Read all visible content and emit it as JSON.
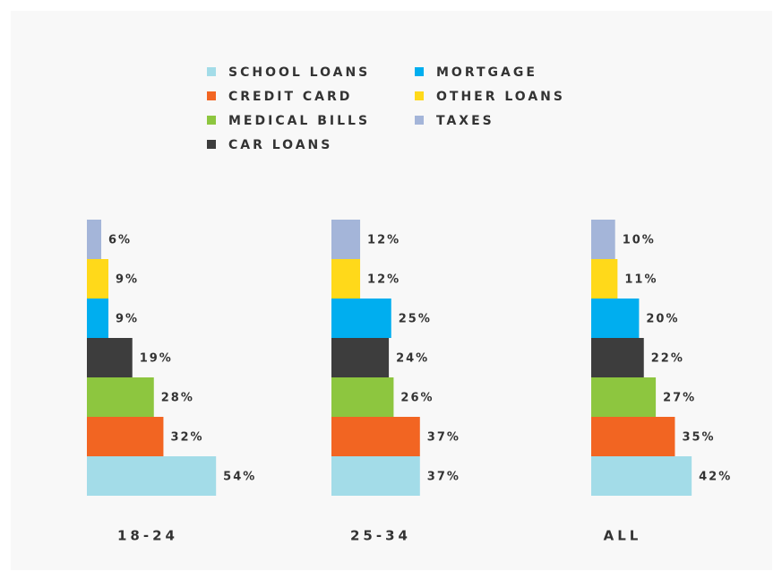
{
  "chart_data": {
    "type": "bar",
    "categories": [
      "18-24",
      "25-34",
      "ALL"
    ],
    "series": [
      {
        "name": "SCHOOL LOANS",
        "color": "#a3dce8",
        "values": [
          54,
          37,
          42
        ],
        "value_labels": [
          "54%",
          "37%",
          "42%"
        ]
      },
      {
        "name": "CREDIT CARD",
        "color": "#f26522",
        "values": [
          32,
          37,
          35
        ],
        "value_labels": [
          "32%",
          "37%",
          "35%"
        ]
      },
      {
        "name": "MEDICAL BILLS",
        "color": "#8dc63f",
        "values": [
          28,
          26,
          27
        ],
        "value_labels": [
          "28%",
          "26%",
          "27%"
        ]
      },
      {
        "name": "CAR LOANS",
        "color": "#3d3d3d",
        "values": [
          19,
          24,
          22
        ],
        "value_labels": [
          "19%",
          "24%",
          "22%"
        ]
      },
      {
        "name": "MORTGAGE",
        "color": "#00aeef",
        "values": [
          9,
          25,
          20
        ],
        "value_labels": [
          "9%",
          "25%",
          "20%"
        ]
      },
      {
        "name": "OTHER LOANS",
        "color": "#ffd91a",
        "values": [
          9,
          12,
          11
        ],
        "value_labels": [
          "9%",
          "12%",
          "11%"
        ]
      },
      {
        "name": "TAXES",
        "color": "#a4b5d9",
        "values": [
          6,
          12,
          10
        ],
        "value_labels": [
          "6%",
          "12%",
          "10%"
        ]
      }
    ]
  }
}
